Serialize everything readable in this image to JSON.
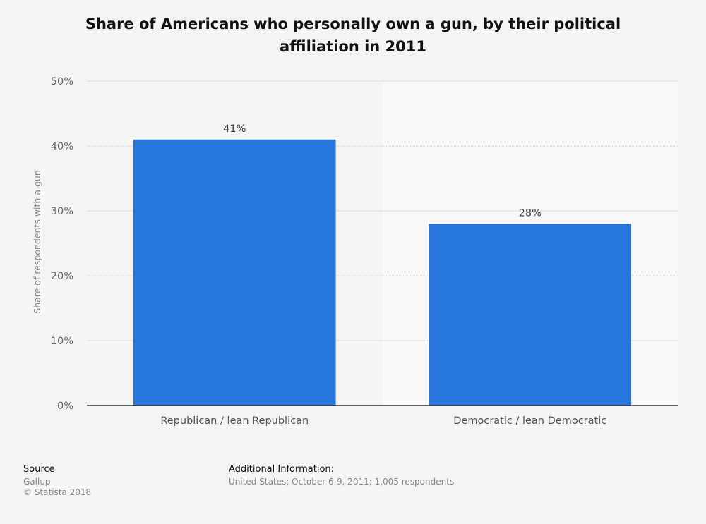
{
  "chart_data": {
    "type": "bar",
    "title": "Share of Americans who personally own a gun, by their political affiliation in 2011",
    "categories": [
      "Republican / lean Republican",
      "Democratic / lean Democratic"
    ],
    "values": [
      41,
      28
    ],
    "value_labels": [
      "41%",
      "28%"
    ],
    "xlabel": "",
    "ylabel": "Share of respondents with a gun",
    "ylim": [
      0,
      50
    ],
    "yticks": [
      0,
      10,
      20,
      30,
      40,
      50
    ],
    "ytick_labels": [
      "0%",
      "10%",
      "20%",
      "30%",
      "40%",
      "50%"
    ],
    "grid": true,
    "bar_color": "#2776de",
    "legend": "none"
  },
  "footer": {
    "source_heading": "Source",
    "source_name": "Gallup",
    "copyright": "© Statista 2018",
    "info_heading": "Additional Information:",
    "info_text": "United States; October 6-9, 2011; 1,005 respondents"
  }
}
